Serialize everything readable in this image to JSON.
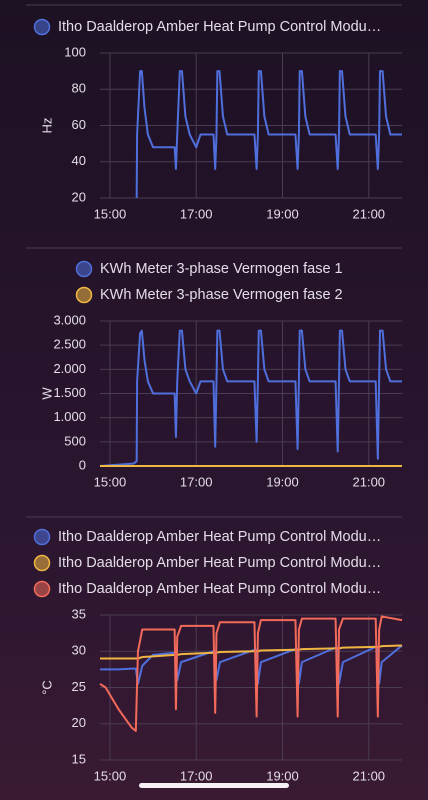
{
  "chart_data": [
    {
      "type": "line",
      "ylabel": "Hz",
      "x": [
        15.62,
        15.63,
        15.7,
        15.74,
        15.8,
        15.88,
        16.0,
        16.5,
        16.53,
        16.56,
        16.62,
        16.67,
        16.75,
        16.85,
        17.0,
        17.1,
        17.4,
        17.44,
        17.47,
        17.49,
        17.54,
        17.62,
        17.72,
        18.35,
        18.4,
        18.43,
        18.45,
        18.5,
        18.58,
        18.68,
        19.3,
        19.35,
        19.38,
        19.4,
        19.45,
        19.53,
        19.63,
        20.23,
        20.28,
        20.31,
        20.33,
        20.38,
        20.46,
        20.56,
        21.16,
        21.21,
        21.24,
        21.26,
        21.32,
        21.4,
        21.5,
        21.77
      ],
      "series": [
        {
          "name": "Itho Daalderop Amber Heat Pump Control Modu…",
          "color": "#4f6fdc",
          "values": [
            20,
            55,
            90,
            90,
            70,
            55,
            48,
            48,
            36,
            55,
            90,
            90,
            65,
            55,
            48,
            55,
            55,
            36,
            55,
            90,
            90,
            65,
            55,
            55,
            36,
            55,
            90,
            90,
            65,
            55,
            55,
            36,
            55,
            90,
            90,
            65,
            55,
            55,
            36,
            55,
            90,
            90,
            65,
            55,
            55,
            36,
            55,
            90,
            90,
            65,
            55,
            55
          ]
        }
      ],
      "xlim": [
        14.77,
        21.77
      ],
      "ylim": [
        20,
        100
      ],
      "yticks": [
        20,
        40,
        60,
        80,
        100
      ],
      "xticks": [
        {
          "value": 15,
          "label": "15:00"
        },
        {
          "value": 17,
          "label": "17:00"
        },
        {
          "value": 19,
          "label": "19:00"
        },
        {
          "value": 21,
          "label": "21:00"
        }
      ],
      "grid": true
    },
    {
      "type": "line",
      "ylabel": "W",
      "x": [
        14.77,
        15.55,
        15.62,
        15.63,
        15.7,
        15.74,
        15.8,
        15.88,
        16.0,
        16.5,
        16.53,
        16.56,
        16.62,
        16.67,
        16.75,
        16.85,
        17.0,
        17.1,
        17.4,
        17.44,
        17.47,
        17.49,
        17.54,
        17.62,
        17.72,
        18.35,
        18.4,
        18.43,
        18.45,
        18.5,
        18.58,
        18.68,
        19.3,
        19.35,
        19.38,
        19.4,
        19.45,
        19.53,
        19.63,
        20.23,
        20.28,
        20.31,
        20.33,
        20.38,
        20.46,
        20.56,
        21.16,
        21.21,
        21.24,
        21.26,
        21.32,
        21.4,
        21.5,
        21.77
      ],
      "series": [
        {
          "name": "KWh Meter 3-phase Vermogen fase 1",
          "color": "#4f6fdc",
          "values": [
            0,
            50,
            100,
            1750,
            2750,
            2800,
            2200,
            1750,
            1500,
            1500,
            600,
            1750,
            2800,
            2800,
            2000,
            1750,
            1500,
            1750,
            1750,
            400,
            1750,
            2800,
            2800,
            2000,
            1750,
            1750,
            500,
            1750,
            2800,
            2800,
            2000,
            1750,
            1750,
            350,
            1750,
            2800,
            2800,
            2000,
            1750,
            1750,
            300,
            1750,
            2800,
            2800,
            2000,
            1750,
            1750,
            150,
            1750,
            2800,
            2800,
            2000,
            1750,
            1750
          ]
        },
        {
          "name": "KWh Meter 3-phase Vermogen fase 2",
          "color": "#f0b642",
          "values": [
            0,
            0,
            0,
            0,
            0,
            0,
            0,
            0,
            0,
            0,
            0,
            0,
            0,
            0,
            0,
            0,
            0,
            0,
            0,
            0,
            0,
            0,
            0,
            0,
            0,
            0,
            0,
            0,
            0,
            0,
            0,
            0,
            0,
            0,
            0,
            0,
            0,
            0,
            0,
            0,
            0,
            0,
            0,
            0,
            0,
            0,
            0,
            0,
            0,
            0,
            0,
            0,
            0,
            0
          ]
        }
      ],
      "xlim": [
        14.77,
        21.77
      ],
      "ylim": [
        0,
        3000
      ],
      "yticks": [
        0,
        500,
        {
          "value": 1000,
          "label": "1.000"
        },
        {
          "value": 1500,
          "label": "1.500"
        },
        {
          "value": 2000,
          "label": "2.000"
        },
        {
          "value": 2500,
          "label": "2.500"
        },
        {
          "value": 3000,
          "label": "3.000"
        }
      ],
      "xticks": [
        {
          "value": 15,
          "label": "15:00"
        },
        {
          "value": 17,
          "label": "17:00"
        },
        {
          "value": 19,
          "label": "19:00"
        },
        {
          "value": 21,
          "label": "21:00"
        }
      ],
      "grid": true
    },
    {
      "type": "line",
      "ylabel": "°C",
      "x": [
        14.77,
        14.9,
        15.2,
        15.5,
        15.6,
        15.65,
        15.75,
        16.0,
        16.5,
        16.53,
        16.56,
        16.65,
        17.4,
        17.44,
        17.47,
        17.55,
        18.35,
        18.4,
        18.43,
        18.5,
        19.3,
        19.35,
        19.38,
        19.45,
        20.23,
        20.28,
        20.31,
        20.4,
        21.16,
        21.21,
        21.24,
        21.3,
        21.77
      ],
      "series": [
        {
          "name": "Itho Daalderop Amber Heat Pump Control Modu…",
          "color": "#4f6fdc",
          "values": [
            27.5,
            27.5,
            27.5,
            27.6,
            27.6,
            25.5,
            28,
            29.5,
            29.8,
            29.8,
            26,
            28.5,
            30,
            30,
            26,
            28.5,
            30.2,
            30.2,
            25.5,
            28.5,
            30.3,
            30.3,
            25.5,
            28.5,
            30.5,
            30.5,
            25.5,
            28.5,
            30.6,
            30.6,
            25.5,
            28.5,
            30.8
          ]
        },
        {
          "name": "Itho Daalderop Amber Heat Pump Control Modu…",
          "color": "#f0b642",
          "values": [
            29,
            29,
            29,
            29,
            29,
            29,
            29.2,
            29.3,
            29.5,
            29.5,
            29.5,
            29.6,
            29.8,
            29.8,
            29.8,
            29.9,
            30,
            30,
            30,
            30.1,
            30.2,
            30.2,
            30.2,
            30.3,
            30.4,
            30.4,
            30.4,
            30.5,
            30.6,
            30.6,
            30.6,
            30.7,
            30.8
          ]
        },
        {
          "name": "Itho Daalderop Amber Heat Pump Control Modu…",
          "color": "#f26a5a",
          "values": [
            25.5,
            25,
            22,
            19.5,
            19,
            30,
            33,
            33,
            33,
            22,
            32,
            33.5,
            33.5,
            21.5,
            32.5,
            34,
            34,
            21,
            32.5,
            34.3,
            34.3,
            21,
            33,
            34.5,
            34.5,
            21,
            33,
            34.5,
            34.5,
            21,
            33,
            34.8,
            34.3
          ]
        }
      ],
      "xlim": [
        14.77,
        21.77
      ],
      "ylim": [
        15,
        35
      ],
      "yticks": [
        15,
        20,
        25,
        30,
        35
      ],
      "xticks": [
        {
          "value": 15,
          "label": "15:00"
        },
        {
          "value": 17,
          "label": "17:00"
        },
        {
          "value": 19,
          "label": "19:00"
        },
        {
          "value": 21,
          "label": "21:00"
        }
      ],
      "grid": true
    }
  ]
}
